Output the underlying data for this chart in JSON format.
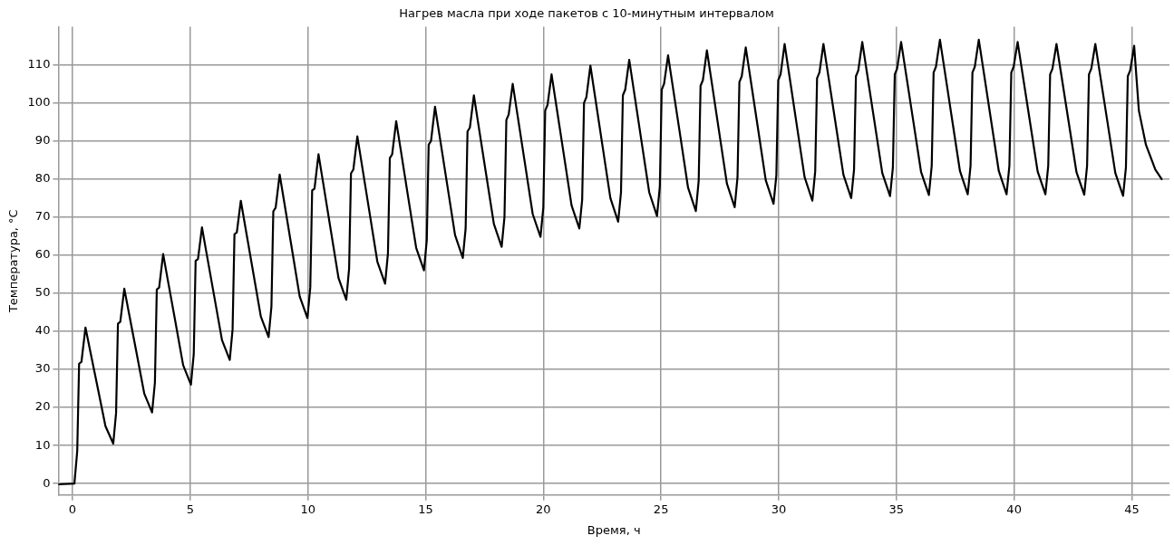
{
  "chart_data": {
    "type": "line",
    "title": "Нагрев масла при ходе пакетов с 10-минутным интервалом",
    "xlabel": "Время, ч",
    "ylabel": "Температура, °С",
    "xlim": [
      -0.6,
      46.6
    ],
    "ylim": [
      -3,
      120
    ],
    "xticks": [
      0,
      5,
      10,
      15,
      20,
      25,
      30,
      35,
      40,
      45
    ],
    "yticks": [
      0,
      10,
      20,
      30,
      40,
      50,
      60,
      70,
      80,
      90,
      100,
      110
    ],
    "grid": true,
    "legend": false,
    "marker": "none",
    "line_style": "solid",
    "series": [
      {
        "color": "#000000",
        "x": [
          -0.6,
          0.08,
          0.2,
          0.28,
          0.38,
          0.55,
          0.75,
          1.05,
          1.4,
          1.73,
          1.85,
          1.93,
          2.03,
          2.2,
          2.4,
          2.7,
          3.05,
          3.38,
          3.5,
          3.58,
          3.68,
          3.85,
          4.05,
          4.35,
          4.7,
          5.03,
          5.15,
          5.23,
          5.33,
          5.5,
          5.7,
          6,
          6.35,
          6.68,
          6.8,
          6.88,
          6.98,
          7.15,
          7.35,
          7.65,
          8,
          8.33,
          8.45,
          8.53,
          8.63,
          8.8,
          9,
          9.3,
          9.65,
          9.98,
          10.1,
          10.18,
          10.28,
          10.45,
          10.65,
          10.95,
          11.3,
          11.63,
          11.75,
          11.83,
          11.93,
          12.1,
          12.3,
          12.6,
          12.95,
          13.28,
          13.4,
          13.48,
          13.58,
          13.75,
          13.95,
          14.25,
          14.6,
          14.93,
          15.05,
          15.13,
          15.23,
          15.4,
          15.6,
          15.9,
          16.25,
          16.58,
          16.7,
          16.78,
          16.88,
          17.05,
          17.25,
          17.55,
          17.9,
          18.23,
          18.35,
          18.43,
          18.53,
          18.7,
          18.9,
          19.2,
          19.55,
          19.88,
          20,
          20.08,
          20.18,
          20.35,
          20.55,
          20.85,
          21.2,
          21.53,
          21.65,
          21.73,
          21.83,
          22,
          22.2,
          22.5,
          22.85,
          23.18,
          23.3,
          23.38,
          23.48,
          23.65,
          23.85,
          24.15,
          24.5,
          24.83,
          24.95,
          25.03,
          25.13,
          25.3,
          25.5,
          25.8,
          26.15,
          26.48,
          26.6,
          26.68,
          26.78,
          26.95,
          27.15,
          27.45,
          27.8,
          28.13,
          28.25,
          28.33,
          28.43,
          28.6,
          28.8,
          29.1,
          29.45,
          29.78,
          29.9,
          29.98,
          30.08,
          30.25,
          30.45,
          30.75,
          31.1,
          31.43,
          31.55,
          31.63,
          31.73,
          31.9,
          32.1,
          32.4,
          32.75,
          33.08,
          33.2,
          33.28,
          33.38,
          33.55,
          33.75,
          34.05,
          34.4,
          34.73,
          34.85,
          34.93,
          35.03,
          35.2,
          35.4,
          35.7,
          36.05,
          36.38,
          36.5,
          36.58,
          36.68,
          36.85,
          37.05,
          37.35,
          37.7,
          38.03,
          38.15,
          38.23,
          38.33,
          38.5,
          38.7,
          39,
          39.35,
          39.68,
          39.8,
          39.88,
          39.98,
          40.15,
          40.35,
          40.65,
          41,
          41.33,
          41.45,
          41.53,
          41.63,
          41.8,
          42,
          42.3,
          42.65,
          42.98,
          43.1,
          43.18,
          43.28,
          43.45,
          43.65,
          43.95,
          44.3,
          44.63,
          44.75,
          44.83,
          44.93,
          45.1,
          45.3,
          45.6,
          46,
          46.27
        ],
        "values": [
          -0.2,
          0,
          8.5,
          31.5,
          32,
          41,
          34.9,
          25.8,
          15.1,
          10.5,
          18.5,
          42,
          42.5,
          51.2,
          44.7,
          35,
          23.6,
          18.7,
          26.5,
          51,
          51.5,
          60.3,
          53.4,
          43.2,
          31.1,
          26,
          34,
          58.5,
          59,
          67.3,
          60.3,
          49.9,
          37.7,
          32.5,
          40.5,
          65.5,
          66,
          74.3,
          67.1,
          56.4,
          43.9,
          38.5,
          46.5,
          71.5,
          72.5,
          81.2,
          73.7,
          62.4,
          49.2,
          43.5,
          51.5,
          77,
          77.5,
          86.5,
          78.9,
          67.4,
          54,
          48.3,
          56.5,
          81.5,
          82.5,
          91.2,
          83.5,
          71.9,
          58.3,
          52.5,
          60.5,
          85.5,
          86.5,
          95.2,
          87.4,
          75.6,
          61.9,
          56,
          64,
          89,
          90,
          99,
          91.1,
          79.2,
          65.3,
          59.3,
          67,
          92.5,
          93.5,
          102,
          94,
          82.1,
          68.2,
          62.2,
          70,
          95.5,
          97,
          105,
          97,
          84.9,
          70.8,
          64.8,
          72.5,
          98,
          99.5,
          107.5,
          99.4,
          87.3,
          73.1,
          67,
          74.5,
          100,
          101.5,
          109.8,
          101.6,
          89.3,
          75,
          68.8,
          76.5,
          102,
          103.5,
          111.3,
          103.1,
          90.8,
          76.5,
          70.3,
          78,
          103.5,
          105,
          112.5,
          104.3,
          92.1,
          77.7,
          71.6,
          79.5,
          104.5,
          106,
          113.8,
          105.6,
          93.2,
          78.8,
          72.6,
          80.5,
          105.5,
          107,
          114.6,
          106.4,
          94.1,
          79.7,
          73.5,
          81,
          106,
          107.5,
          115.5,
          107.3,
          94.9,
          80.5,
          74.3,
          82,
          106.5,
          108,
          115.5,
          107.4,
          95.3,
          81.1,
          75,
          82.5,
          107,
          108.5,
          116,
          107.9,
          95.8,
          81.6,
          75.5,
          83,
          107.5,
          109,
          116,
          108,
          95.9,
          81.8,
          75.8,
          83.5,
          108,
          109.5,
          116.6,
          108.5,
          96.3,
          82.1,
          76,
          83.5,
          108,
          109.5,
          116.6,
          108.5,
          96.3,
          82.1,
          76,
          83.5,
          108,
          109.5,
          116,
          108,
          96,
          82,
          76,
          83.5,
          107.5,
          109,
          115.5,
          107.6,
          95.7,
          81.8,
          75.9,
          83.5,
          107.5,
          109,
          115.5,
          107.5,
          95.6,
          81.6,
          75.6,
          83,
          107,
          108.5,
          115,
          98,
          89,
          82.5,
          80
        ]
      }
    ]
  }
}
